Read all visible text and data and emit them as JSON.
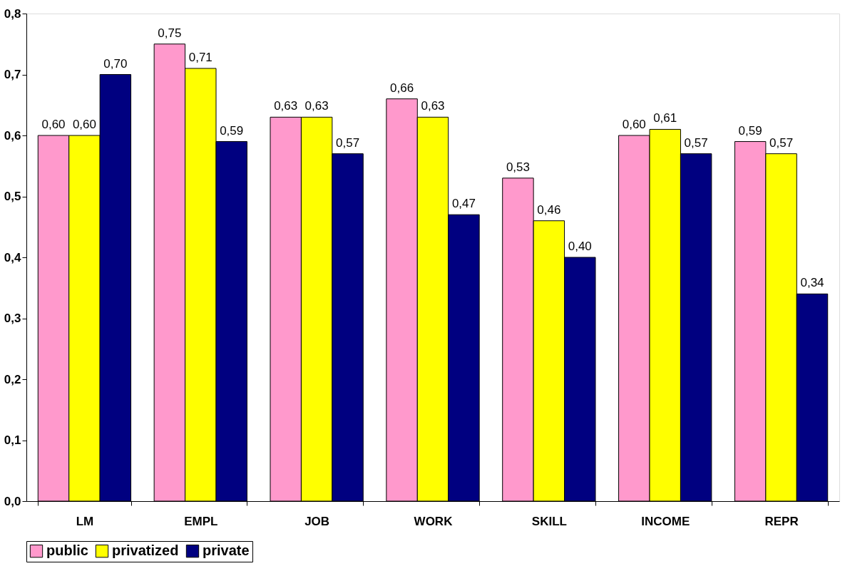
{
  "chart_data": {
    "type": "bar",
    "categories": [
      "LM",
      "EMPL",
      "JOB",
      "WORK",
      "SKILL",
      "INCOME",
      "REPR"
    ],
    "series": [
      {
        "name": "public",
        "color": "#ff99cc",
        "values": [
          0.6,
          0.75,
          0.63,
          0.66,
          0.53,
          0.6,
          0.59
        ],
        "value_labels": [
          "0,60",
          "0,75",
          "0,63",
          "0,66",
          "0,53",
          "0,60",
          "0,59"
        ]
      },
      {
        "name": "privatized",
        "color": "#ffff00",
        "values": [
          0.6,
          0.71,
          0.63,
          0.63,
          0.46,
          0.61,
          0.57
        ],
        "value_labels": [
          "0,60",
          "0,71",
          "0,63",
          "0,63",
          "0,46",
          "0,61",
          "0,57"
        ]
      },
      {
        "name": "private",
        "color": "#000080",
        "values": [
          0.7,
          0.59,
          0.57,
          0.47,
          0.4,
          0.57,
          0.34
        ],
        "value_labels": [
          "0,70",
          "0,59",
          "0,57",
          "0,47",
          "0,40",
          "0,57",
          "0,34"
        ]
      }
    ],
    "ylim": [
      0,
      0.8
    ],
    "yticks": [
      {
        "value": 0,
        "label": "0,0"
      },
      {
        "value": 0.1,
        "label": "0,1"
      },
      {
        "value": 0.2,
        "label": "0,2"
      },
      {
        "value": 0.3,
        "label": "0,3"
      },
      {
        "value": 0.4,
        "label": "0,4"
      },
      {
        "value": 0.5,
        "label": "0,5"
      },
      {
        "value": 0.6,
        "label": "0,6"
      },
      {
        "value": 0.7,
        "label": "0,7"
      },
      {
        "value": 0.8,
        "label": "0,8"
      }
    ],
    "grid": false,
    "legend": "bottom"
  }
}
